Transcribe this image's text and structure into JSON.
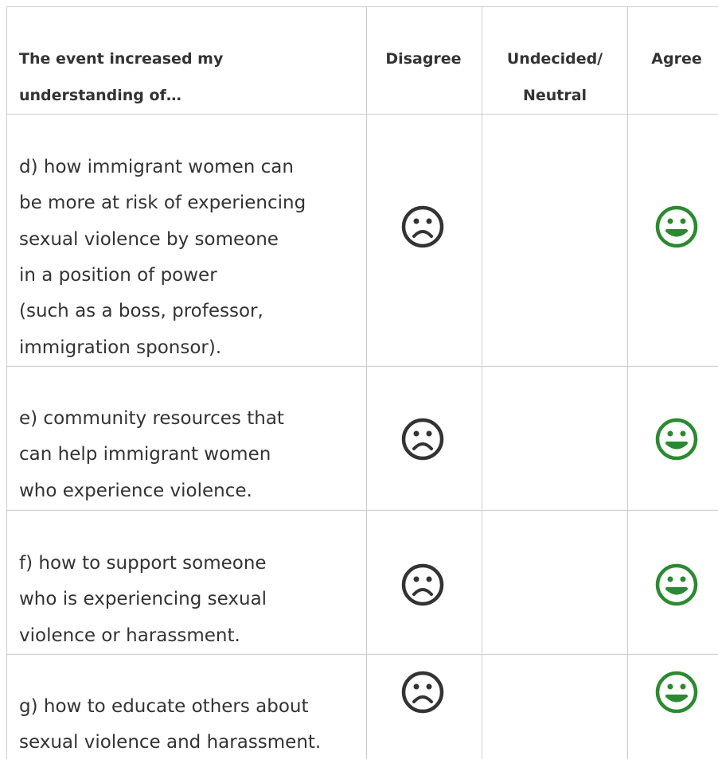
{
  "table": {
    "header": [
      [
        "The event increased my",
        "understanding of…"
      ],
      [
        "Disagree"
      ],
      [
        "Undecided/",
        "Neutral"
      ],
      [
        "Agree"
      ]
    ],
    "rows": [
      {
        "text": [
          "d) how immigrant women can",
          "be more at risk of experiencing",
          "sexual violence by someone",
          "in a position of power",
          "(such as a boss, professor,",
          "immigration sponsor)."
        ]
      },
      {
        "text": [
          "e) community resources that",
          "can help immigrant women",
          "who experience violence."
        ]
      },
      {
        "text": [
          "f) how to support someone",
          "who is experiencing sexual",
          "violence or harassment."
        ]
      },
      {
        "text": [
          "g) how to educate others about",
          "sexual violence and harassment."
        ]
      }
    ]
  }
}
